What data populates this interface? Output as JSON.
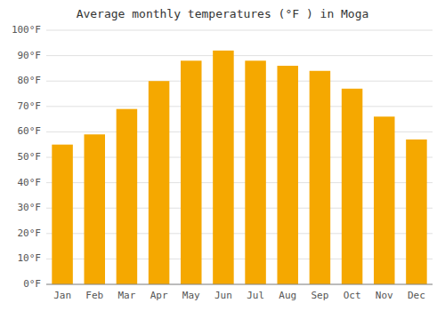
{
  "chart_data": {
    "type": "bar",
    "title": "Average monthly temperatures (°F ) in Moga",
    "categories": [
      "Jan",
      "Feb",
      "Mar",
      "Apr",
      "May",
      "Jun",
      "Jul",
      "Aug",
      "Sep",
      "Oct",
      "Nov",
      "Dec"
    ],
    "values": [
      55,
      59,
      69,
      80,
      88,
      92,
      88,
      86,
      84,
      77,
      66,
      57
    ],
    "color": "#F5A800",
    "ylim": [
      0,
      100
    ],
    "yticks": [
      {
        "value": 0,
        "label": "0°F"
      },
      {
        "value": 10,
        "label": "10°F"
      },
      {
        "value": 20,
        "label": "20°F"
      },
      {
        "value": 30,
        "label": "30°F"
      },
      {
        "value": 40,
        "label": "40°F"
      },
      {
        "value": 50,
        "label": "50°F"
      },
      {
        "value": 60,
        "label": "60°F"
      },
      {
        "value": 70,
        "label": "70°F"
      },
      {
        "value": 80,
        "label": "80°F"
      },
      {
        "value": 90,
        "label": "90°F"
      },
      {
        "value": 100,
        "label": "100°F"
      }
    ],
    "grid": true
  }
}
